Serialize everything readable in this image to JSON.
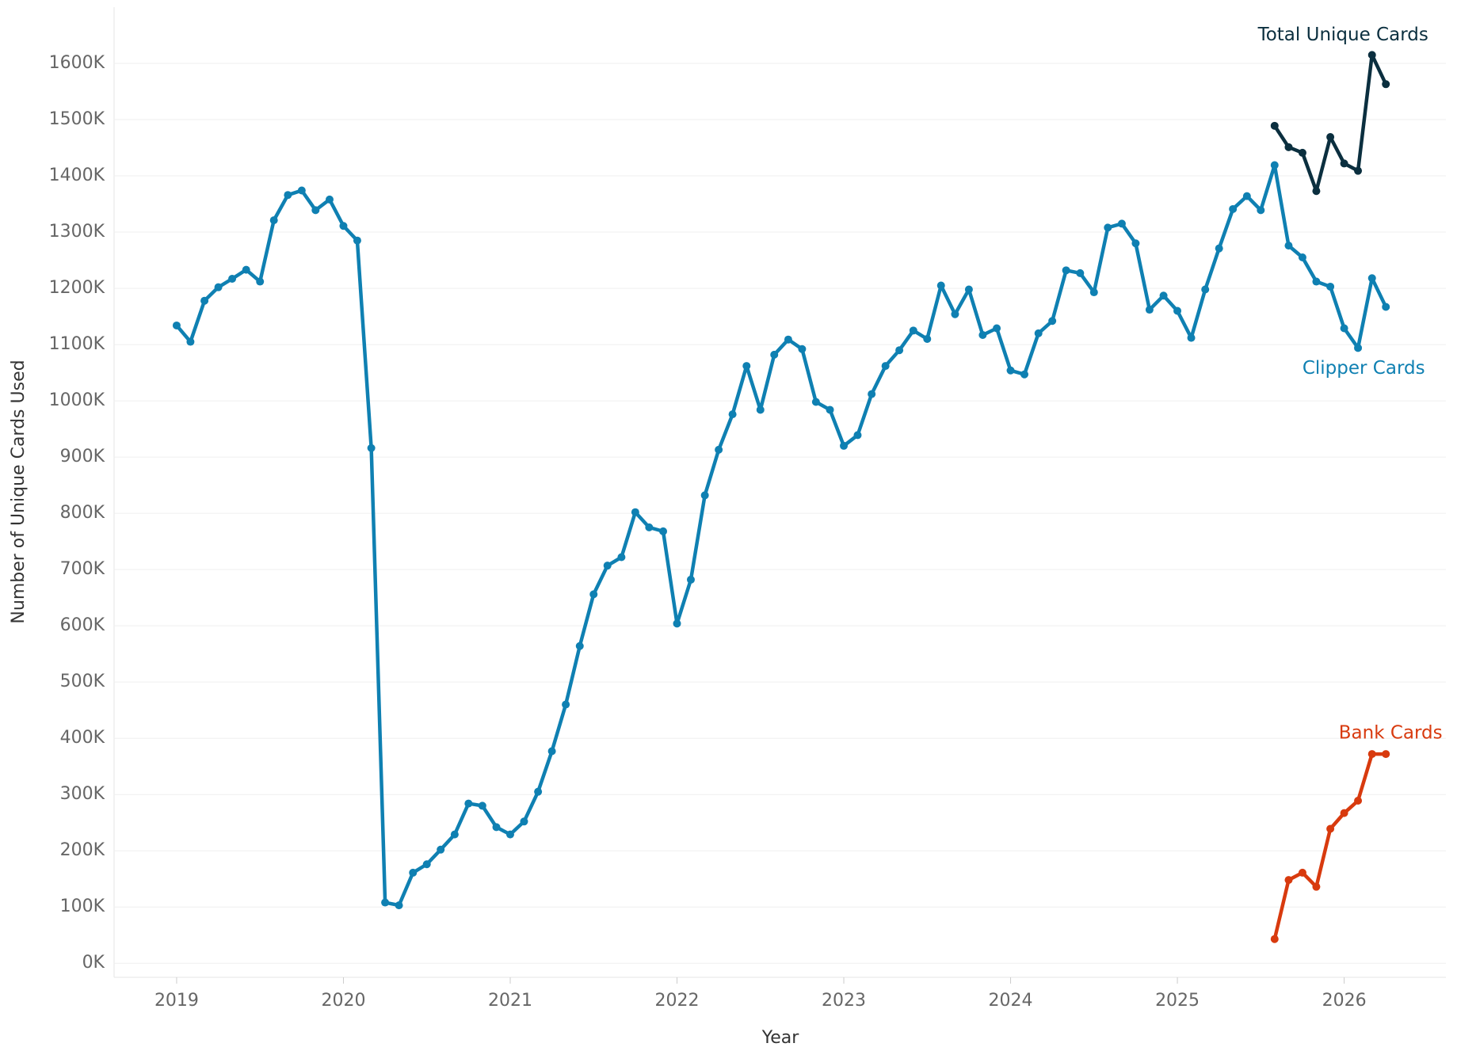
{
  "chart_data": {
    "type": "line",
    "xlabel": "Year",
    "ylabel": "Number of Unique Cards Used",
    "x": [
      2019,
      2019.083,
      2019.167,
      2019.25,
      2019.333,
      2019.417,
      2019.5,
      2019.583,
      2019.667,
      2019.75,
      2019.833,
      2019.917,
      2020,
      2020.083,
      2020.167,
      2020.25,
      2020.333,
      2020.417,
      2020.5,
      2020.583,
      2020.667,
      2020.75,
      2020.833,
      2020.917,
      2021,
      2021.083,
      2021.167,
      2021.25,
      2021.333,
      2021.417,
      2021.5,
      2021.583,
      2021.667,
      2021.75,
      2021.833,
      2021.917,
      2022,
      2022.083,
      2022.167,
      2022.25,
      2022.333,
      2022.417,
      2022.5,
      2022.583,
      2022.667,
      2022.75,
      2022.833,
      2022.917,
      2023,
      2023.083,
      2023.167,
      2023.25,
      2023.333,
      2023.417,
      2023.5,
      2023.583,
      2023.667,
      2023.75,
      2023.833,
      2023.917,
      2024,
      2024.083,
      2024.167,
      2024.25,
      2024.333,
      2024.417,
      2024.5,
      2024.583,
      2024.667,
      2024.75,
      2024.833,
      2024.917,
      2025,
      2025.083,
      2025.167,
      2025.25,
      2025.333,
      2025.417,
      2025.5,
      2025.583,
      2025.667,
      2025.75,
      2025.833,
      2025.917,
      2026,
      2026.083,
      2026.167,
      2026.25
    ],
    "series": [
      {
        "name": "Clipper Cards",
        "color": "#0f80b2",
        "values": [
          1134000,
          1105000,
          1178000,
          1202000,
          1217000,
          1233000,
          1212000,
          1321000,
          1366000,
          1374000,
          1339000,
          1358000,
          1311000,
          1285000,
          916000,
          108000,
          103000,
          161000,
          176000,
          202000,
          229000,
          284000,
          280000,
          242000,
          229000,
          252000,
          305000,
          377000,
          460000,
          564000,
          656000,
          707000,
          722000,
          802000,
          775000,
          768000,
          604000,
          682000,
          832000,
          913000,
          976000,
          1062000,
          984000,
          1082000,
          1109000,
          1092000,
          998000,
          984000,
          920000,
          939000,
          1012000,
          1062000,
          1090000,
          1125000,
          1110000,
          1205000,
          1154000,
          1198000,
          1117000,
          1129000,
          1054000,
          1047000,
          1120000,
          1142000,
          1232000,
          1227000,
          1193000,
          1308000,
          1315000,
          1280000,
          1162000,
          1187000,
          1160000,
          1112000,
          1198000,
          1271000,
          1341000,
          1364000,
          1339000,
          1419000,
          1276000,
          1255000,
          1212000,
          1203000,
          1129000,
          1094000,
          1218000,
          1167000
        ]
      },
      {
        "name": "Total Unique Cards",
        "color": "#0b2f3f",
        "values": [
          null,
          null,
          null,
          null,
          null,
          null,
          null,
          null,
          null,
          null,
          null,
          null,
          null,
          null,
          null,
          null,
          null,
          null,
          null,
          null,
          null,
          null,
          null,
          null,
          null,
          null,
          null,
          null,
          null,
          null,
          null,
          null,
          null,
          null,
          null,
          null,
          null,
          null,
          null,
          null,
          null,
          null,
          null,
          null,
          null,
          null,
          null,
          null,
          null,
          null,
          null,
          null,
          null,
          null,
          null,
          null,
          null,
          null,
          null,
          null,
          null,
          null,
          null,
          null,
          null,
          null,
          null,
          null,
          null,
          null,
          null,
          null,
          null,
          null,
          null,
          null,
          null,
          null,
          null,
          1489000,
          1451000,
          1441000,
          1373000,
          1469000,
          1422000,
          1409000,
          1615000,
          1563000
        ]
      },
      {
        "name": "Bank Cards",
        "color": "#d83a0e",
        "values": [
          null,
          null,
          null,
          null,
          null,
          null,
          null,
          null,
          null,
          null,
          null,
          null,
          null,
          null,
          null,
          null,
          null,
          null,
          null,
          null,
          null,
          null,
          null,
          null,
          null,
          null,
          null,
          null,
          null,
          null,
          null,
          null,
          null,
          null,
          null,
          null,
          null,
          null,
          null,
          null,
          null,
          null,
          null,
          null,
          null,
          null,
          null,
          null,
          null,
          null,
          null,
          null,
          null,
          null,
          null,
          null,
          null,
          null,
          null,
          null,
          null,
          null,
          null,
          null,
          null,
          null,
          null,
          null,
          null,
          null,
          null,
          null,
          null,
          null,
          null,
          null,
          null,
          null,
          null,
          43000,
          148000,
          161000,
          136000,
          239000,
          267000,
          289000,
          372000,
          372000
        ]
      }
    ],
    "xlim": [
      2018.625,
      2026.61
    ],
    "xticks": [
      2019,
      2020,
      2021,
      2022,
      2023,
      2024,
      2025,
      2026
    ],
    "ylim": [
      -25000,
      1700000
    ],
    "yticks": [
      {
        "value": 0,
        "label": "0K"
      },
      {
        "value": 100000,
        "label": "100K"
      },
      {
        "value": 200000,
        "label": "200K"
      },
      {
        "value": 300000,
        "label": "300K"
      },
      {
        "value": 400000,
        "label": "400K"
      },
      {
        "value": 500000,
        "label": "500K"
      },
      {
        "value": 600000,
        "label": "600K"
      },
      {
        "value": 700000,
        "label": "700K"
      },
      {
        "value": 800000,
        "label": "800K"
      },
      {
        "value": 900000,
        "label": "900K"
      },
      {
        "value": 1000000,
        "label": "1000K"
      },
      {
        "value": 1100000,
        "label": "1100K"
      },
      {
        "value": 1200000,
        "label": "1200K"
      },
      {
        "value": 1300000,
        "label": "1300K"
      },
      {
        "value": 1400000,
        "label": "1400K"
      },
      {
        "value": 1500000,
        "label": "1500K"
      },
      {
        "value": 1600000,
        "label": "1600K"
      }
    ],
    "grid": true
  }
}
